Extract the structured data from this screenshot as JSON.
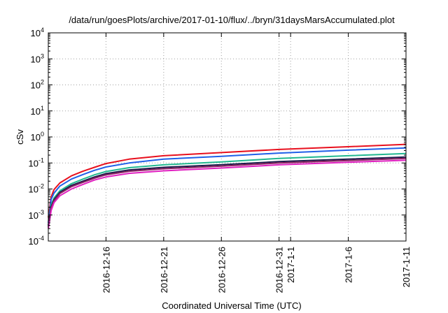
{
  "chart_data": {
    "type": "line",
    "title": "/data/run/goesPlots/archive/2017-01-10/flux/../bryn/31daysMarsAccumulated.plot",
    "xlabel": "Coordinated Universal Time (UTC)",
    "ylabel": "cSv",
    "yscale": "log",
    "ylim": [
      0.0001,
      10000
    ],
    "xlim": [
      "2016-12-11",
      "2017-01-11"
    ],
    "grid": true,
    "legend": "none",
    "y_ticks": [
      {
        "value": 0.0001,
        "base": "10",
        "exp": "-4"
      },
      {
        "value": 0.001,
        "base": "10",
        "exp": "-3"
      },
      {
        "value": 0.01,
        "base": "10",
        "exp": "-2"
      },
      {
        "value": 0.1,
        "base": "10",
        "exp": "-1"
      },
      {
        "value": 1,
        "base": "10",
        "exp": "0"
      },
      {
        "value": 10,
        "base": "10",
        "exp": "1"
      },
      {
        "value": 100,
        "base": "10",
        "exp": "2"
      },
      {
        "value": 1000,
        "base": "10",
        "exp": "3"
      },
      {
        "value": 10000,
        "base": "10",
        "exp": "4"
      }
    ],
    "x_ticks": [
      {
        "date": "2016-12-16",
        "label": "2016-12-16"
      },
      {
        "date": "2016-12-21",
        "label": "2016-12-21"
      },
      {
        "date": "2016-12-26",
        "label": "2016-12-26"
      },
      {
        "date": "2016-12-31",
        "label": "2016-12-31"
      },
      {
        "date": "2017-01-01",
        "label": "2017-1-1"
      },
      {
        "date": "2017-01-06",
        "label": "2017-1-6"
      },
      {
        "date": "2017-01-11",
        "label": "2017-1-11"
      }
    ],
    "x": [
      "2016-12-11",
      "2016-12-11 06:00",
      "2016-12-11 12:00",
      "2016-12-12",
      "2016-12-13",
      "2016-12-14",
      "2016-12-15",
      "2016-12-16",
      "2016-12-18",
      "2016-12-21",
      "2016-12-26",
      "2016-12-31",
      "2017-01-06",
      "2017-01-11"
    ],
    "series": [
      {
        "color": "#e8101e",
        "values": [
          0.0008,
          0.005,
          0.0095,
          0.017,
          0.032,
          0.048,
          0.068,
          0.095,
          0.14,
          0.19,
          0.25,
          0.33,
          0.42,
          0.52
        ]
      },
      {
        "color": "#2060e8",
        "values": [
          0.0005,
          0.004,
          0.007,
          0.013,
          0.024,
          0.036,
          0.052,
          0.07,
          0.1,
          0.14,
          0.18,
          0.24,
          0.31,
          0.38
        ]
      },
      {
        "color": "#22b890",
        "values": [
          0.0004,
          0.0025,
          0.0045,
          0.0085,
          0.016,
          0.024,
          0.035,
          0.047,
          0.066,
          0.085,
          0.11,
          0.15,
          0.19,
          0.23
        ]
      },
      {
        "color": "#1a1a4a",
        "values": [
          0.0004,
          0.0021,
          0.0039,
          0.0074,
          0.0137,
          0.02,
          0.029,
          0.039,
          0.054,
          0.068,
          0.086,
          0.113,
          0.14,
          0.17
        ]
      },
      {
        "color": "#8a2060",
        "values": [
          0.00035,
          0.0019,
          0.0035,
          0.0067,
          0.0123,
          0.018,
          0.026,
          0.035,
          0.048,
          0.06,
          0.076,
          0.1,
          0.124,
          0.15
        ]
      },
      {
        "color": "#e020c0",
        "values": [
          0.0003,
          0.0015,
          0.003,
          0.0055,
          0.01,
          0.015,
          0.022,
          0.029,
          0.04,
          0.05,
          0.064,
          0.085,
          0.106,
          0.127
        ]
      }
    ]
  }
}
